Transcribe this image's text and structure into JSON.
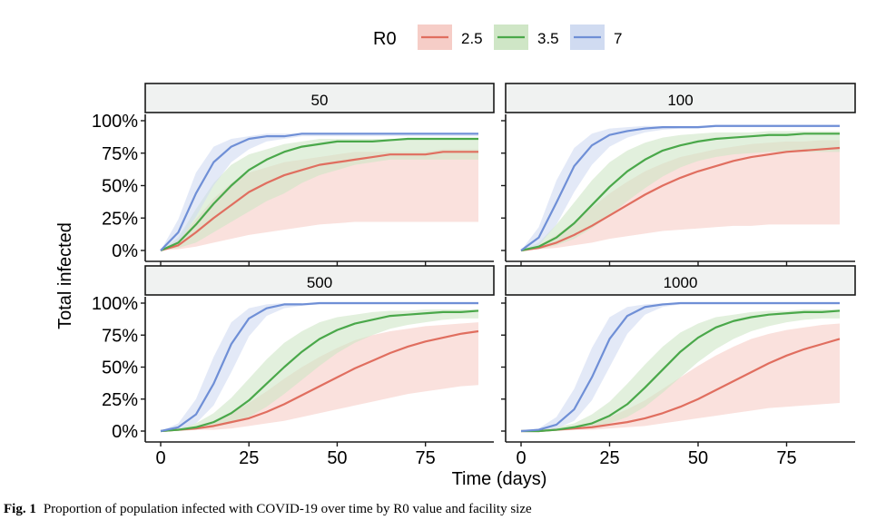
{
  "chart_data": {
    "type": "line",
    "facet_type": "2x2 small multiples with shaded uncertainty bands",
    "facets": [
      "50",
      "100",
      "500",
      "1000"
    ],
    "xlabel": "Time (days)",
    "ylabel": "Total infected",
    "xlim": [
      0,
      90
    ],
    "ylim": [
      0,
      1
    ],
    "x_ticks": [
      0,
      25,
      50,
      75
    ],
    "y_ticks": [
      "0%",
      "25%",
      "50%",
      "75%",
      "100%"
    ],
    "legend": {
      "title": "R0",
      "position": "top",
      "entries": [
        "2.5",
        "3.5",
        "7"
      ]
    },
    "colors": {
      "2.5": "#e06e5f",
      "3.5": "#4aa84a",
      "7": "#6f8fd6"
    },
    "band_colors": {
      "2.5": "#f6cdc7",
      "3.5": "#cfe6c6",
      "7": "#d0dbf1"
    },
    "x": [
      0,
      5,
      10,
      15,
      20,
      25,
      30,
      35,
      40,
      45,
      50,
      55,
      60,
      65,
      70,
      75,
      80,
      85,
      90
    ],
    "panels": [
      {
        "facility_size": "50",
        "series": [
          {
            "name": "2.5",
            "median": [
              0,
              0.04,
              0.14,
              0.25,
              0.35,
              0.45,
              0.52,
              0.58,
              0.62,
              0.66,
              0.68,
              0.7,
              0.72,
              0.74,
              0.74,
              0.74,
              0.76,
              0.76,
              0.76
            ],
            "lower": [
              0,
              0.01,
              0.03,
              0.06,
              0.09,
              0.12,
              0.14,
              0.16,
              0.18,
              0.2,
              0.21,
              0.22,
              0.22,
              0.22,
              0.22,
              0.22,
              0.22,
              0.22,
              0.22
            ],
            "upper": [
              0,
              0.08,
              0.24,
              0.4,
              0.52,
              0.6,
              0.64,
              0.68,
              0.7,
              0.72,
              0.74,
              0.76,
              0.76,
              0.76,
              0.76,
              0.76,
              0.78,
              0.78,
              0.78
            ]
          },
          {
            "name": "3.5",
            "median": [
              0,
              0.06,
              0.2,
              0.36,
              0.5,
              0.62,
              0.7,
              0.76,
              0.8,
              0.82,
              0.84,
              0.84,
              0.84,
              0.85,
              0.86,
              0.86,
              0.86,
              0.86,
              0.86
            ],
            "lower": [
              0,
              0.02,
              0.06,
              0.14,
              0.22,
              0.3,
              0.38,
              0.44,
              0.52,
              0.58,
              0.62,
              0.66,
              0.68,
              0.7,
              0.7,
              0.7,
              0.7,
              0.7,
              0.7
            ],
            "upper": [
              0,
              0.1,
              0.32,
              0.52,
              0.66,
              0.74,
              0.78,
              0.82,
              0.84,
              0.86,
              0.86,
              0.86,
              0.86,
              0.86,
              0.86,
              0.86,
              0.86,
              0.86,
              0.86
            ]
          },
          {
            "name": "7",
            "median": [
              0,
              0.14,
              0.44,
              0.68,
              0.8,
              0.86,
              0.88,
              0.88,
              0.9,
              0.9,
              0.9,
              0.9,
              0.9,
              0.9,
              0.9,
              0.9,
              0.9,
              0.9,
              0.9
            ],
            "lower": [
              0,
              0.06,
              0.26,
              0.5,
              0.68,
              0.78,
              0.84,
              0.86,
              0.88,
              0.88,
              0.88,
              0.88,
              0.88,
              0.88,
              0.88,
              0.88,
              0.88,
              0.88,
              0.88
            ],
            "upper": [
              0,
              0.24,
              0.6,
              0.8,
              0.86,
              0.88,
              0.9,
              0.9,
              0.9,
              0.9,
              0.9,
              0.9,
              0.9,
              0.9,
              0.9,
              0.9,
              0.9,
              0.9,
              0.9
            ]
          }
        ]
      },
      {
        "facility_size": "100",
        "series": [
          {
            "name": "2.5",
            "median": [
              0,
              0.02,
              0.06,
              0.12,
              0.19,
              0.27,
              0.35,
              0.43,
              0.5,
              0.56,
              0.61,
              0.65,
              0.69,
              0.72,
              0.74,
              0.76,
              0.77,
              0.78,
              0.79
            ],
            "lower": [
              0,
              0.01,
              0.02,
              0.04,
              0.06,
              0.09,
              0.11,
              0.13,
              0.15,
              0.16,
              0.17,
              0.18,
              0.19,
              0.19,
              0.2,
              0.2,
              0.2,
              0.2,
              0.2
            ],
            "upper": [
              0,
              0.04,
              0.12,
              0.22,
              0.33,
              0.44,
              0.53,
              0.61,
              0.67,
              0.72,
              0.75,
              0.78,
              0.8,
              0.82,
              0.83,
              0.84,
              0.84,
              0.85,
              0.85
            ]
          },
          {
            "name": "3.5",
            "median": [
              0,
              0.03,
              0.1,
              0.21,
              0.35,
              0.49,
              0.61,
              0.7,
              0.77,
              0.81,
              0.84,
              0.86,
              0.87,
              0.88,
              0.89,
              0.89,
              0.9,
              0.9,
              0.9
            ],
            "lower": [
              0,
              0.01,
              0.04,
              0.09,
              0.17,
              0.27,
              0.38,
              0.48,
              0.57,
              0.64,
              0.69,
              0.72,
              0.74,
              0.75,
              0.76,
              0.76,
              0.76,
              0.76,
              0.76
            ],
            "upper": [
              0,
              0.06,
              0.2,
              0.37,
              0.54,
              0.68,
              0.77,
              0.83,
              0.87,
              0.89,
              0.9,
              0.91,
              0.91,
              0.91,
              0.92,
              0.92,
              0.92,
              0.92,
              0.92
            ]
          },
          {
            "name": "7",
            "median": [
              0,
              0.1,
              0.37,
              0.65,
              0.81,
              0.89,
              0.92,
              0.94,
              0.95,
              0.95,
              0.95,
              0.96,
              0.96,
              0.96,
              0.96,
              0.96,
              0.96,
              0.96,
              0.96
            ],
            "lower": [
              0,
              0.04,
              0.2,
              0.45,
              0.66,
              0.8,
              0.87,
              0.91,
              0.93,
              0.94,
              0.94,
              0.95,
              0.95,
              0.95,
              0.95,
              0.95,
              0.95,
              0.95,
              0.95
            ],
            "upper": [
              0,
              0.18,
              0.54,
              0.79,
              0.9,
              0.94,
              0.95,
              0.96,
              0.96,
              0.96,
              0.96,
              0.96,
              0.96,
              0.96,
              0.96,
              0.96,
              0.96,
              0.96,
              0.96
            ]
          }
        ]
      },
      {
        "facility_size": "500",
        "series": [
          {
            "name": "2.5",
            "median": [
              0,
              0.01,
              0.02,
              0.04,
              0.07,
              0.1,
              0.15,
              0.21,
              0.28,
              0.35,
              0.42,
              0.49,
              0.55,
              0.61,
              0.66,
              0.7,
              0.73,
              0.76,
              0.78
            ],
            "lower": [
              0,
              0,
              0.01,
              0.01,
              0.02,
              0.04,
              0.06,
              0.08,
              0.11,
              0.14,
              0.17,
              0.2,
              0.23,
              0.26,
              0.29,
              0.31,
              0.33,
              0.35,
              0.36
            ],
            "upper": [
              0,
              0.01,
              0.04,
              0.08,
              0.14,
              0.22,
              0.31,
              0.41,
              0.5,
              0.58,
              0.65,
              0.71,
              0.75,
              0.78,
              0.8,
              0.82,
              0.83,
              0.84,
              0.85
            ]
          },
          {
            "name": "3.5",
            "median": [
              0,
              0.01,
              0.03,
              0.07,
              0.14,
              0.24,
              0.37,
              0.5,
              0.62,
              0.72,
              0.79,
              0.84,
              0.87,
              0.9,
              0.91,
              0.92,
              0.93,
              0.93,
              0.94
            ],
            "lower": [
              0,
              0,
              0.01,
              0.03,
              0.06,
              0.11,
              0.19,
              0.29,
              0.4,
              0.51,
              0.61,
              0.69,
              0.75,
              0.8,
              0.83,
              0.85,
              0.87,
              0.88,
              0.88
            ],
            "upper": [
              0,
              0.02,
              0.06,
              0.14,
              0.26,
              0.41,
              0.56,
              0.69,
              0.78,
              0.85,
              0.89,
              0.91,
              0.93,
              0.94,
              0.94,
              0.95,
              0.95,
              0.95,
              0.95
            ]
          },
          {
            "name": "7",
            "median": [
              0,
              0.03,
              0.13,
              0.37,
              0.68,
              0.88,
              0.96,
              0.99,
              0.99,
              1,
              1,
              1,
              1,
              1,
              1,
              1,
              1,
              1,
              1
            ],
            "lower": [
              0,
              0.01,
              0.06,
              0.2,
              0.46,
              0.74,
              0.9,
              0.96,
              0.98,
              0.99,
              0.99,
              0.99,
              0.99,
              0.99,
              0.99,
              0.99,
              0.99,
              0.99,
              0.99
            ],
            "upper": [
              0,
              0.06,
              0.25,
              0.58,
              0.85,
              0.96,
              0.99,
              1,
              1,
              1,
              1,
              1,
              1,
              1,
              1,
              1,
              1,
              1,
              1
            ]
          }
        ]
      },
      {
        "facility_size": "1000",
        "series": [
          {
            "name": "2.5",
            "median": [
              0,
              0,
              0.01,
              0.02,
              0.03,
              0.05,
              0.07,
              0.1,
              0.14,
              0.19,
              0.25,
              0.32,
              0.39,
              0.46,
              0.53,
              0.59,
              0.64,
              0.68,
              0.72
            ],
            "lower": [
              0,
              0,
              0,
              0.01,
              0.01,
              0.02,
              0.03,
              0.04,
              0.06,
              0.08,
              0.1,
              0.12,
              0.14,
              0.16,
              0.18,
              0.19,
              0.2,
              0.21,
              0.22
            ],
            "upper": [
              0,
              0.01,
              0.02,
              0.04,
              0.07,
              0.11,
              0.17,
              0.24,
              0.33,
              0.42,
              0.51,
              0.59,
              0.66,
              0.72,
              0.76,
              0.79,
              0.81,
              0.83,
              0.84
            ]
          },
          {
            "name": "3.5",
            "median": [
              0,
              0,
              0.01,
              0.03,
              0.06,
              0.12,
              0.21,
              0.34,
              0.48,
              0.62,
              0.73,
              0.81,
              0.86,
              0.89,
              0.91,
              0.92,
              0.93,
              0.93,
              0.94
            ],
            "lower": [
              0,
              0,
              0.01,
              0.01,
              0.03,
              0.06,
              0.11,
              0.19,
              0.3,
              0.42,
              0.54,
              0.64,
              0.72,
              0.78,
              0.82,
              0.85,
              0.87,
              0.88,
              0.88
            ],
            "upper": [
              0,
              0.01,
              0.03,
              0.06,
              0.13,
              0.23,
              0.37,
              0.52,
              0.66,
              0.77,
              0.84,
              0.89,
              0.91,
              0.93,
              0.94,
              0.94,
              0.95,
              0.95,
              0.95
            ]
          },
          {
            "name": "7",
            "median": [
              0,
              0.01,
              0.05,
              0.17,
              0.42,
              0.72,
              0.9,
              0.97,
              0.99,
              1,
              1,
              1,
              1,
              1,
              1,
              1,
              1,
              1,
              1
            ],
            "lower": [
              0,
              0,
              0.02,
              0.08,
              0.24,
              0.5,
              0.76,
              0.91,
              0.97,
              0.99,
              0.99,
              0.99,
              0.99,
              0.99,
              0.99,
              0.99,
              0.99,
              0.99,
              0.99
            ],
            "upper": [
              0,
              0.02,
              0.11,
              0.33,
              0.65,
              0.89,
              0.97,
              0.99,
              1,
              1,
              1,
              1,
              1,
              1,
              1,
              1,
              1,
              1,
              1
            ]
          }
        ]
      }
    ]
  },
  "caption": {
    "label": "Fig. 1",
    "text": "Proportion of population infected with COVID-19 over time by R0 value and facility size"
  }
}
